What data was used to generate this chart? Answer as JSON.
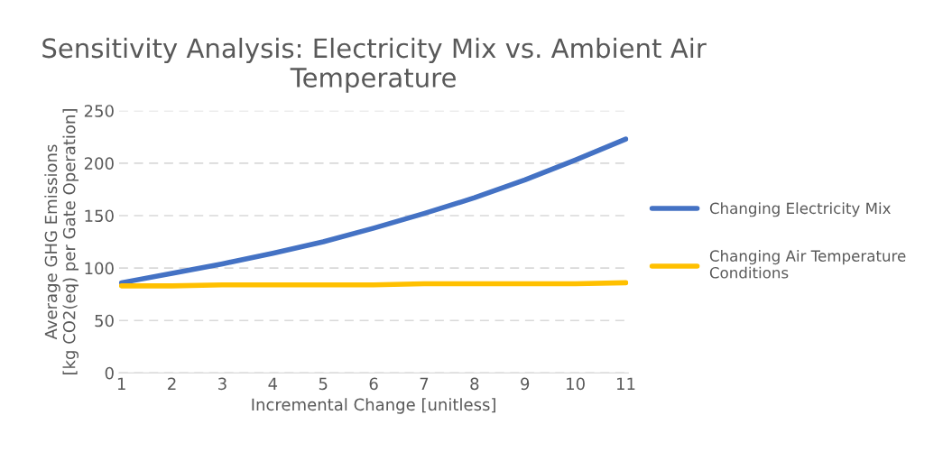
{
  "chart_data": {
    "type": "line",
    "title": "Sensitivity Analysis: Electricity Mix vs. Ambient Air Temperature",
    "xlabel": "Incremental Change [unitless]",
    "ylabel": "Average GHG Emissions\n[kg CO2(eq) per Gate Operation]",
    "categories": [
      "1",
      "2",
      "3",
      "4",
      "5",
      "6",
      "7",
      "8",
      "9",
      "10",
      "11"
    ],
    "series": [
      {
        "name": "Changing Electricity Mix",
        "color": "#4472c4",
        "values": [
          86,
          95,
          104,
          114,
          125,
          138,
          152,
          167,
          184,
          203,
          223
        ]
      },
      {
        "name": "Changing Air Temperature\nConditions",
        "color": "#ffc000",
        "values": [
          83,
          83,
          84,
          84,
          84,
          84,
          85,
          85,
          85,
          85,
          86
        ]
      }
    ],
    "ylim": [
      0,
      250
    ],
    "yticks": [
      0,
      50,
      100,
      150,
      200,
      250
    ],
    "grid": "y",
    "legend": "right",
    "marker": "none",
    "line_style": "solid"
  }
}
